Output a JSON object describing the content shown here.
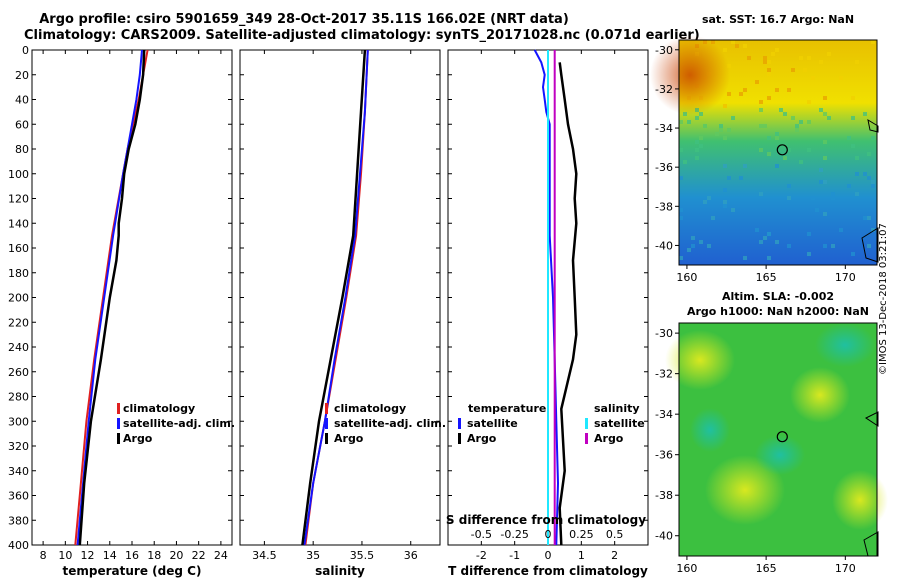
{
  "title": {
    "line1": "Argo profile: csiro 5901659_349 28-Oct-2017 35.11S 166.02E (NRT data)",
    "line2": "Climatology: CARS2009. Satellite-adjusted climatology: synTS_20171028.nc (0.071d earlier)"
  },
  "depth_axis": {
    "ticks": [
      0,
      20,
      40,
      60,
      80,
      100,
      120,
      140,
      160,
      180,
      200,
      220,
      240,
      260,
      280,
      300,
      320,
      340,
      360,
      380,
      400
    ],
    "range": [
      0,
      400
    ]
  },
  "colors": {
    "climatology": "#e02020",
    "satellite": "#1414ff",
    "argo": "#000000",
    "sat_salinity": "#20e8ff",
    "argo_salinity": "#c000c0"
  },
  "chart_data": [
    {
      "type": "line",
      "name": "temperature",
      "xlabel": "temperature (deg C)",
      "ylabel": "",
      "xlim": [
        7,
        25
      ],
      "ylim": [
        400,
        0
      ],
      "xticks": [
        "8",
        "10",
        "12",
        "14",
        "16",
        "18",
        "20",
        "22",
        "24"
      ],
      "xtick_values": [
        8,
        10,
        12,
        14,
        16,
        18,
        20,
        22,
        24
      ],
      "legend": [
        "climatology",
        "satellite-adj. clim.",
        "Argo"
      ],
      "series": [
        {
          "name": "climatology",
          "depth": [
            0,
            20,
            40,
            60,
            80,
            100,
            150,
            200,
            250,
            300,
            350,
            400
          ],
          "values": [
            17.4,
            17.0,
            16.6,
            16.1,
            15.6,
            15.2,
            14.2,
            13.4,
            12.6,
            11.9,
            11.4,
            10.9
          ]
        },
        {
          "name": "satellite-adj. clim.",
          "depth": [
            0,
            20,
            40,
            60,
            80,
            100,
            150,
            200,
            250,
            300,
            350,
            400
          ],
          "values": [
            16.9,
            16.7,
            16.4,
            16.0,
            15.6,
            15.2,
            14.3,
            13.5,
            12.7,
            12.1,
            11.6,
            11.1
          ]
        },
        {
          "name": "Argo",
          "depth": [
            0,
            20,
            40,
            60,
            80,
            100,
            120,
            140,
            150,
            170,
            200,
            250,
            300,
            350,
            400
          ],
          "values": [
            17.1,
            17.0,
            16.7,
            16.3,
            15.7,
            15.3,
            15.1,
            14.8,
            14.8,
            14.6,
            14.0,
            13.2,
            12.3,
            11.7,
            11.3
          ]
        }
      ]
    },
    {
      "type": "line",
      "name": "salinity",
      "xlabel": "salinity",
      "ylabel": "",
      "xlim": [
        34.25,
        36.3
      ],
      "ylim": [
        400,
        0
      ],
      "xticks": [
        "34.5",
        "35",
        "35.5",
        "36"
      ],
      "xtick_values": [
        34.5,
        35,
        35.5,
        36
      ],
      "legend": [
        "climatology",
        "satellite-adj. clim.",
        "Argo"
      ],
      "series": [
        {
          "name": "climatology",
          "depth": [
            0,
            50,
            100,
            150,
            200,
            250,
            300,
            350,
            400
          ],
          "values": [
            35.56,
            35.53,
            35.49,
            35.44,
            35.34,
            35.23,
            35.12,
            35.0,
            34.92
          ]
        },
        {
          "name": "satellite-adj. clim.",
          "depth": [
            0,
            50,
            100,
            150,
            200,
            250,
            300,
            350,
            400
          ],
          "values": [
            35.56,
            35.53,
            35.48,
            35.43,
            35.33,
            35.22,
            35.12,
            35.0,
            34.91
          ]
        },
        {
          "name": "Argo",
          "depth": [
            0,
            50,
            100,
            150,
            200,
            250,
            300,
            350,
            400
          ],
          "values": [
            35.53,
            35.49,
            35.45,
            35.41,
            35.3,
            35.18,
            35.06,
            34.97,
            34.89
          ]
        }
      ]
    },
    {
      "type": "line",
      "name": "difference from climatology",
      "xlabel": "T difference from climatology",
      "xlabel_top": "S difference from climatology",
      "xlim": [
        -3,
        3
      ],
      "ylim": [
        400,
        0
      ],
      "xticks": [
        "-2",
        "-1",
        "0",
        "1",
        "2"
      ],
      "xtick_values": [
        -2,
        -1,
        0,
        1,
        2
      ],
      "sticks": [
        "-0.5",
        "-0.25",
        "0",
        "0.25",
        "0.5"
      ],
      "stick_values": [
        -2,
        -1,
        0,
        1,
        2
      ],
      "legend_left_title": "temperature",
      "legend_right_title": "salinity",
      "legend_left": [
        "satellite",
        "Argo"
      ],
      "legend_right": [
        "satellite",
        "Argo"
      ],
      "series": [
        {
          "name": "T satellite",
          "depth": [
            0,
            10,
            20,
            30,
            40,
            50,
            55,
            60,
            80,
            100,
            150,
            200,
            250,
            300,
            350,
            400
          ],
          "values": [
            -0.4,
            -0.2,
            -0.1,
            -0.15,
            -0.1,
            -0.05,
            0.0,
            0.05,
            0.05,
            0.05,
            0.05,
            0.15,
            0.2,
            0.25,
            0.3,
            0.25
          ]
        },
        {
          "name": "T Argo",
          "depth": [
            10,
            20,
            40,
            60,
            80,
            100,
            120,
            140,
            170,
            200,
            230,
            250,
            290,
            340,
            370,
            400
          ],
          "values": [
            0.35,
            0.4,
            0.5,
            0.6,
            0.75,
            0.85,
            0.8,
            0.85,
            0.75,
            0.8,
            0.85,
            0.75,
            0.4,
            0.5,
            0.35,
            0.4
          ]
        },
        {
          "name": "S satellite",
          "depth": [
            0,
            100,
            200,
            300,
            400
          ],
          "values": [
            0.0,
            0.0,
            0.0,
            0.0,
            0.0
          ]
        },
        {
          "name": "S Argo",
          "depth": [
            0,
            400
          ],
          "values": [
            0.05,
            0.05
          ]
        }
      ]
    },
    {
      "type": "heatmap",
      "name": "sat. SST",
      "title": "sat. SST: 16.7 Argo: NaN",
      "xticks": [
        "160",
        "165",
        "170"
      ],
      "yticks": [
        "-30",
        "-32",
        "-34",
        "-36",
        "-38",
        "-40"
      ],
      "xlim": [
        159.5,
        172
      ],
      "ylim": [
        -29.5,
        -41
      ],
      "marker": {
        "lon": 166.02,
        "lat": -35.11
      }
    },
    {
      "type": "heatmap",
      "name": "Altim. SLA",
      "title": "Altim. SLA: -0.002",
      "subtitle": "Argo h1000: NaN h2000: NaN",
      "xticks": [
        "160",
        "165",
        "170"
      ],
      "yticks": [
        "-30",
        "-32",
        "-34",
        "-36",
        "-38",
        "-40"
      ],
      "xlim": [
        159.5,
        172
      ],
      "ylim": [
        -29.5,
        -41
      ],
      "marker": {
        "lon": 166.02,
        "lat": -35.11
      }
    }
  ],
  "stamp": "©IMOS 13-Dec-2018 03:21:07"
}
